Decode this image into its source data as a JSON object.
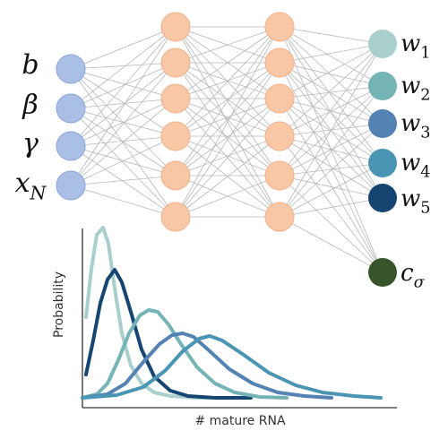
{
  "diagram": {
    "inputs": [
      "b",
      "β",
      "γ",
      "x_N"
    ],
    "hidden_layer_1_nodes": 6,
    "hidden_layer_2_nodes": 6,
    "outputs": [
      "w_1",
      "w_2",
      "w_3",
      "w_4",
      "w_5"
    ],
    "extra_output": "c_σ",
    "colors": {
      "input": "#a9bfe6",
      "input_stroke": "#8aa3d6",
      "hidden": "#f8c8a6",
      "hidden_stroke": "#f0b088",
      "edge": "#b8b8b8",
      "w1": "#a8cfcc",
      "w2": "#74b3b6",
      "w3": "#5482b3",
      "w4": "#4a94b4",
      "w5": "#154570",
      "c_sigma": "#36552a"
    }
  },
  "chart": {
    "xlabel": "# mature RNA",
    "ylabel": "Probability"
  }
}
